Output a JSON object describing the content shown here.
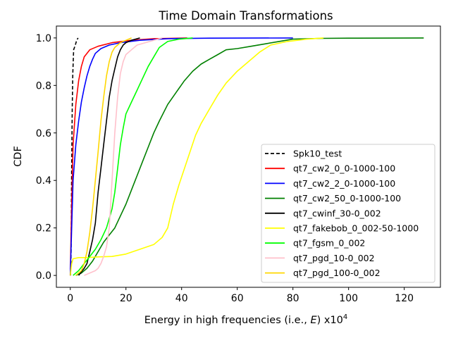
{
  "chart_data": {
    "type": "line",
    "title": "Time Domain Transformations",
    "xlabel": "Energy in high frequencies (i.e., E) x10^4",
    "xlabel_parts": {
      "prefix": "Energy in high frequencies (i.e., ",
      "symbol": "E",
      "suffix": ") x10",
      "exponent": "4"
    },
    "ylabel": "CDF",
    "xlim": [
      -5,
      133
    ],
    "ylim": [
      -0.05,
      1.05
    ],
    "xticks": [
      0,
      20,
      40,
      60,
      80,
      100,
      120
    ],
    "yticks": [
      0.0,
      0.2,
      0.4,
      0.6,
      0.8,
      1.0
    ],
    "xtick_labels": [
      "0",
      "20",
      "40",
      "60",
      "80",
      "100",
      "120"
    ],
    "ytick_labels": [
      "0.0",
      "0.2",
      "0.4",
      "0.6",
      "0.8",
      "1.0"
    ],
    "grid": false,
    "legend_position": "lower right",
    "series": [
      {
        "name": "Spk10_test",
        "color": "#000000",
        "dash": "dashed",
        "points": [
          [
            0.1,
            0
          ],
          [
            0.3,
            0.1
          ],
          [
            0.5,
            0.45
          ],
          [
            0.7,
            0.7
          ],
          [
            0.9,
            0.85
          ],
          [
            1.2,
            0.95
          ],
          [
            1.8,
            0.97
          ],
          [
            2.3,
            0.99
          ],
          [
            2.8,
            1.0
          ]
        ]
      },
      {
        "name": "qt7_cw2_0_0-1000-100",
        "color": "#ff0000",
        "dash": "solid",
        "points": [
          [
            0,
            0
          ],
          [
            0.5,
            0.3
          ],
          [
            1,
            0.55
          ],
          [
            2,
            0.72
          ],
          [
            3,
            0.82
          ],
          [
            4,
            0.88
          ],
          [
            5,
            0.92
          ],
          [
            7,
            0.95
          ],
          [
            10,
            0.965
          ],
          [
            15,
            0.98
          ],
          [
            22,
            0.99
          ],
          [
            30,
            0.997
          ],
          [
            42,
            1.0
          ]
        ]
      },
      {
        "name": "qt7_cw2_2_0-1000-100",
        "color": "#0000ff",
        "dash": "solid",
        "points": [
          [
            0,
            0
          ],
          [
            0.5,
            0.2
          ],
          [
            1,
            0.4
          ],
          [
            2,
            0.55
          ],
          [
            3,
            0.65
          ],
          [
            4,
            0.73
          ],
          [
            5,
            0.79
          ],
          [
            6,
            0.84
          ],
          [
            7,
            0.88
          ],
          [
            8,
            0.91
          ],
          [
            9,
            0.935
          ],
          [
            11,
            0.955
          ],
          [
            14,
            0.97
          ],
          [
            18,
            0.98
          ],
          [
            25,
            0.99
          ],
          [
            35,
            0.997
          ],
          [
            50,
            0.999
          ],
          [
            80,
            1.0
          ]
        ]
      },
      {
        "name": "qt7_cw2_50_0-1000-100",
        "color": "#008000",
        "dash": "solid",
        "points": [
          [
            2,
            0
          ],
          [
            4,
            0.01
          ],
          [
            6,
            0.03
          ],
          [
            8,
            0.06
          ],
          [
            10,
            0.1
          ],
          [
            12,
            0.14
          ],
          [
            14,
            0.17
          ],
          [
            16,
            0.2
          ],
          [
            18,
            0.25
          ],
          [
            20,
            0.3
          ],
          [
            22,
            0.36
          ],
          [
            24,
            0.42
          ],
          [
            26,
            0.48
          ],
          [
            28,
            0.54
          ],
          [
            30,
            0.6
          ],
          [
            32,
            0.65
          ],
          [
            35,
            0.72
          ],
          [
            38,
            0.77
          ],
          [
            41,
            0.82
          ],
          [
            44,
            0.86
          ],
          [
            47,
            0.89
          ],
          [
            50,
            0.91
          ],
          [
            53,
            0.93
          ],
          [
            56,
            0.95
          ],
          [
            60,
            0.955
          ],
          [
            65,
            0.965
          ],
          [
            70,
            0.975
          ],
          [
            75,
            0.985
          ],
          [
            80,
            0.995
          ],
          [
            90,
            0.998
          ],
          [
            100,
            0.999
          ],
          [
            127,
            1.0
          ]
        ]
      },
      {
        "name": "qt7_cwinf_30-0_002",
        "color": "#000000",
        "dash": "solid",
        "points": [
          [
            3,
            0
          ],
          [
            5,
            0.03
          ],
          [
            6,
            0.05
          ],
          [
            7,
            0.1
          ],
          [
            8,
            0.15
          ],
          [
            9,
            0.22
          ],
          [
            10,
            0.35
          ],
          [
            11,
            0.45
          ],
          [
            12,
            0.55
          ],
          [
            13,
            0.65
          ],
          [
            14,
            0.75
          ],
          [
            15,
            0.82
          ],
          [
            16,
            0.87
          ],
          [
            17,
            0.92
          ],
          [
            18,
            0.95
          ],
          [
            19,
            0.97
          ],
          [
            20,
            0.98
          ],
          [
            22,
            0.99
          ],
          [
            25,
            1.0
          ]
        ]
      },
      {
        "name": "qt7_fakebob_0_002-50-1000",
        "color": "#ffff00",
        "dash": "solid",
        "points": [
          [
            0,
            0
          ],
          [
            0.5,
            0.05
          ],
          [
            1,
            0.07
          ],
          [
            3,
            0.075
          ],
          [
            6,
            0.075
          ],
          [
            10,
            0.078
          ],
          [
            15,
            0.08
          ],
          [
            20,
            0.09
          ],
          [
            25,
            0.11
          ],
          [
            30,
            0.13
          ],
          [
            33,
            0.16
          ],
          [
            35,
            0.2
          ],
          [
            37,
            0.3
          ],
          [
            39,
            0.38
          ],
          [
            41,
            0.45
          ],
          [
            43,
            0.52
          ],
          [
            45,
            0.59
          ],
          [
            47,
            0.64
          ],
          [
            50,
            0.7
          ],
          [
            53,
            0.76
          ],
          [
            56,
            0.81
          ],
          [
            60,
            0.86
          ],
          [
            64,
            0.9
          ],
          [
            68,
            0.94
          ],
          [
            72,
            0.97
          ],
          [
            78,
            0.985
          ],
          [
            85,
            0.995
          ],
          [
            91,
            1.0
          ]
        ]
      },
      {
        "name": "qt7_fgsm_0_002",
        "color": "#00ff00",
        "dash": "solid",
        "points": [
          [
            1,
            0
          ],
          [
            3,
            0.02
          ],
          [
            5,
            0.05
          ],
          [
            7,
            0.08
          ],
          [
            9,
            0.11
          ],
          [
            11,
            0.15
          ],
          [
            13,
            0.2
          ],
          [
            15,
            0.28
          ],
          [
            16,
            0.35
          ],
          [
            17,
            0.45
          ],
          [
            18,
            0.55
          ],
          [
            19,
            0.62
          ],
          [
            20,
            0.68
          ],
          [
            22,
            0.73
          ],
          [
            24,
            0.78
          ],
          [
            26,
            0.83
          ],
          [
            28,
            0.88
          ],
          [
            30,
            0.92
          ],
          [
            32,
            0.96
          ],
          [
            35,
            0.985
          ],
          [
            39,
            0.995
          ],
          [
            44,
            1.0
          ]
        ]
      },
      {
        "name": "qt7_pgd_10-0_002",
        "color": "#ffc0cb",
        "dash": "solid",
        "points": [
          [
            5,
            0
          ],
          [
            7,
            0.01
          ],
          [
            9,
            0.02
          ],
          [
            10,
            0.03
          ],
          [
            11,
            0.05
          ],
          [
            12,
            0.08
          ],
          [
            13,
            0.12
          ],
          [
            14,
            0.2
          ],
          [
            15,
            0.4
          ],
          [
            16,
            0.6
          ],
          [
            17,
            0.75
          ],
          [
            18,
            0.85
          ],
          [
            19,
            0.9
          ],
          [
            20,
            0.93
          ],
          [
            22,
            0.95
          ],
          [
            24,
            0.97
          ],
          [
            27,
            0.98
          ],
          [
            30,
            0.99
          ],
          [
            33,
            1.0
          ]
        ]
      },
      {
        "name": "qt7_pgd_100-0_002",
        "color": "#ffd700",
        "dash": "solid",
        "points": [
          [
            2,
            0
          ],
          [
            4,
            0.02
          ],
          [
            5,
            0.05
          ],
          [
            6,
            0.1
          ],
          [
            7,
            0.18
          ],
          [
            8,
            0.28
          ],
          [
            9,
            0.4
          ],
          [
            10,
            0.52
          ],
          [
            11,
            0.65
          ],
          [
            12,
            0.75
          ],
          [
            13,
            0.84
          ],
          [
            14,
            0.9
          ],
          [
            15,
            0.94
          ],
          [
            16,
            0.96
          ],
          [
            18,
            0.98
          ],
          [
            20,
            0.99
          ],
          [
            22,
            1.0
          ]
        ]
      }
    ]
  }
}
